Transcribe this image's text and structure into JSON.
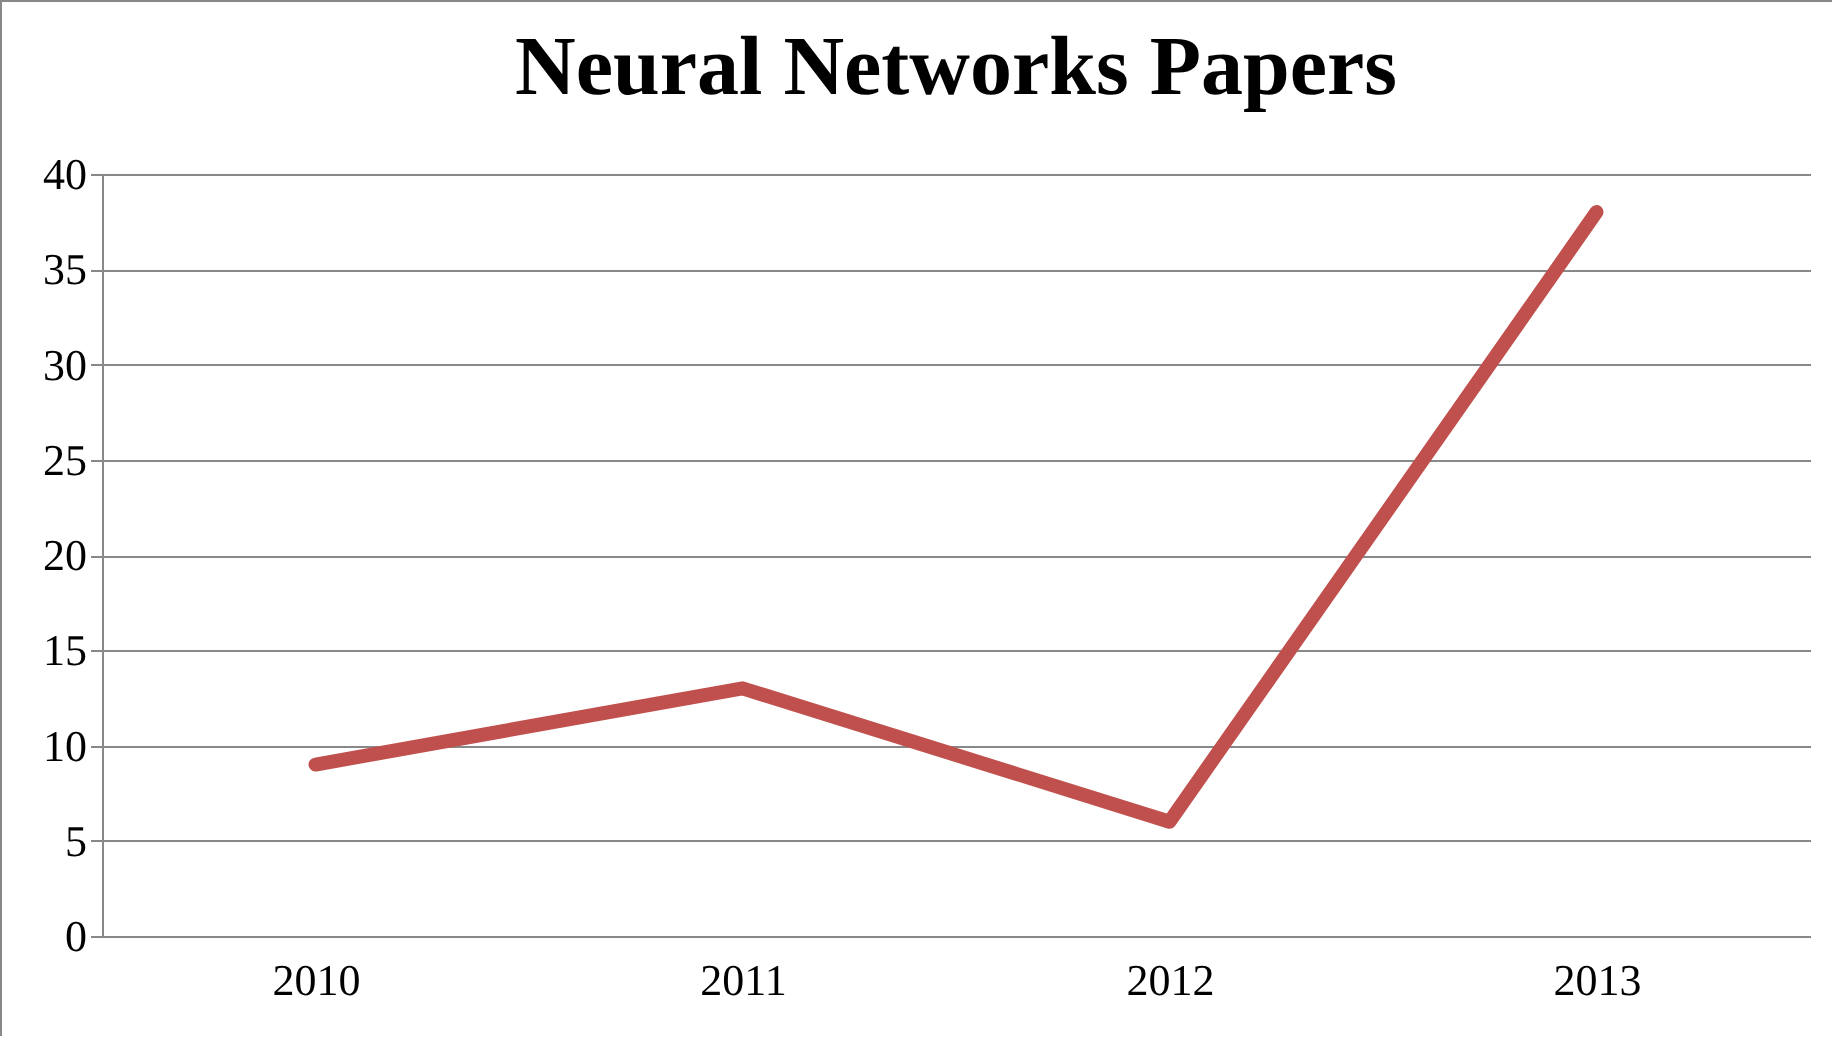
{
  "chart_data": {
    "type": "line",
    "title": "Neural Networks Papers",
    "categories": [
      "2010",
      "2011",
      "2012",
      "2013"
    ],
    "series": [
      {
        "color": "#c0504d",
        "values": [
          9,
          13,
          6,
          38
        ]
      }
    ],
    "ylim": [
      0,
      40
    ],
    "yticks": [
      0,
      5,
      10,
      15,
      20,
      25,
      30,
      35,
      40
    ],
    "grid": "y",
    "legend": false,
    "marker": "none",
    "line_style": "solid"
  }
}
